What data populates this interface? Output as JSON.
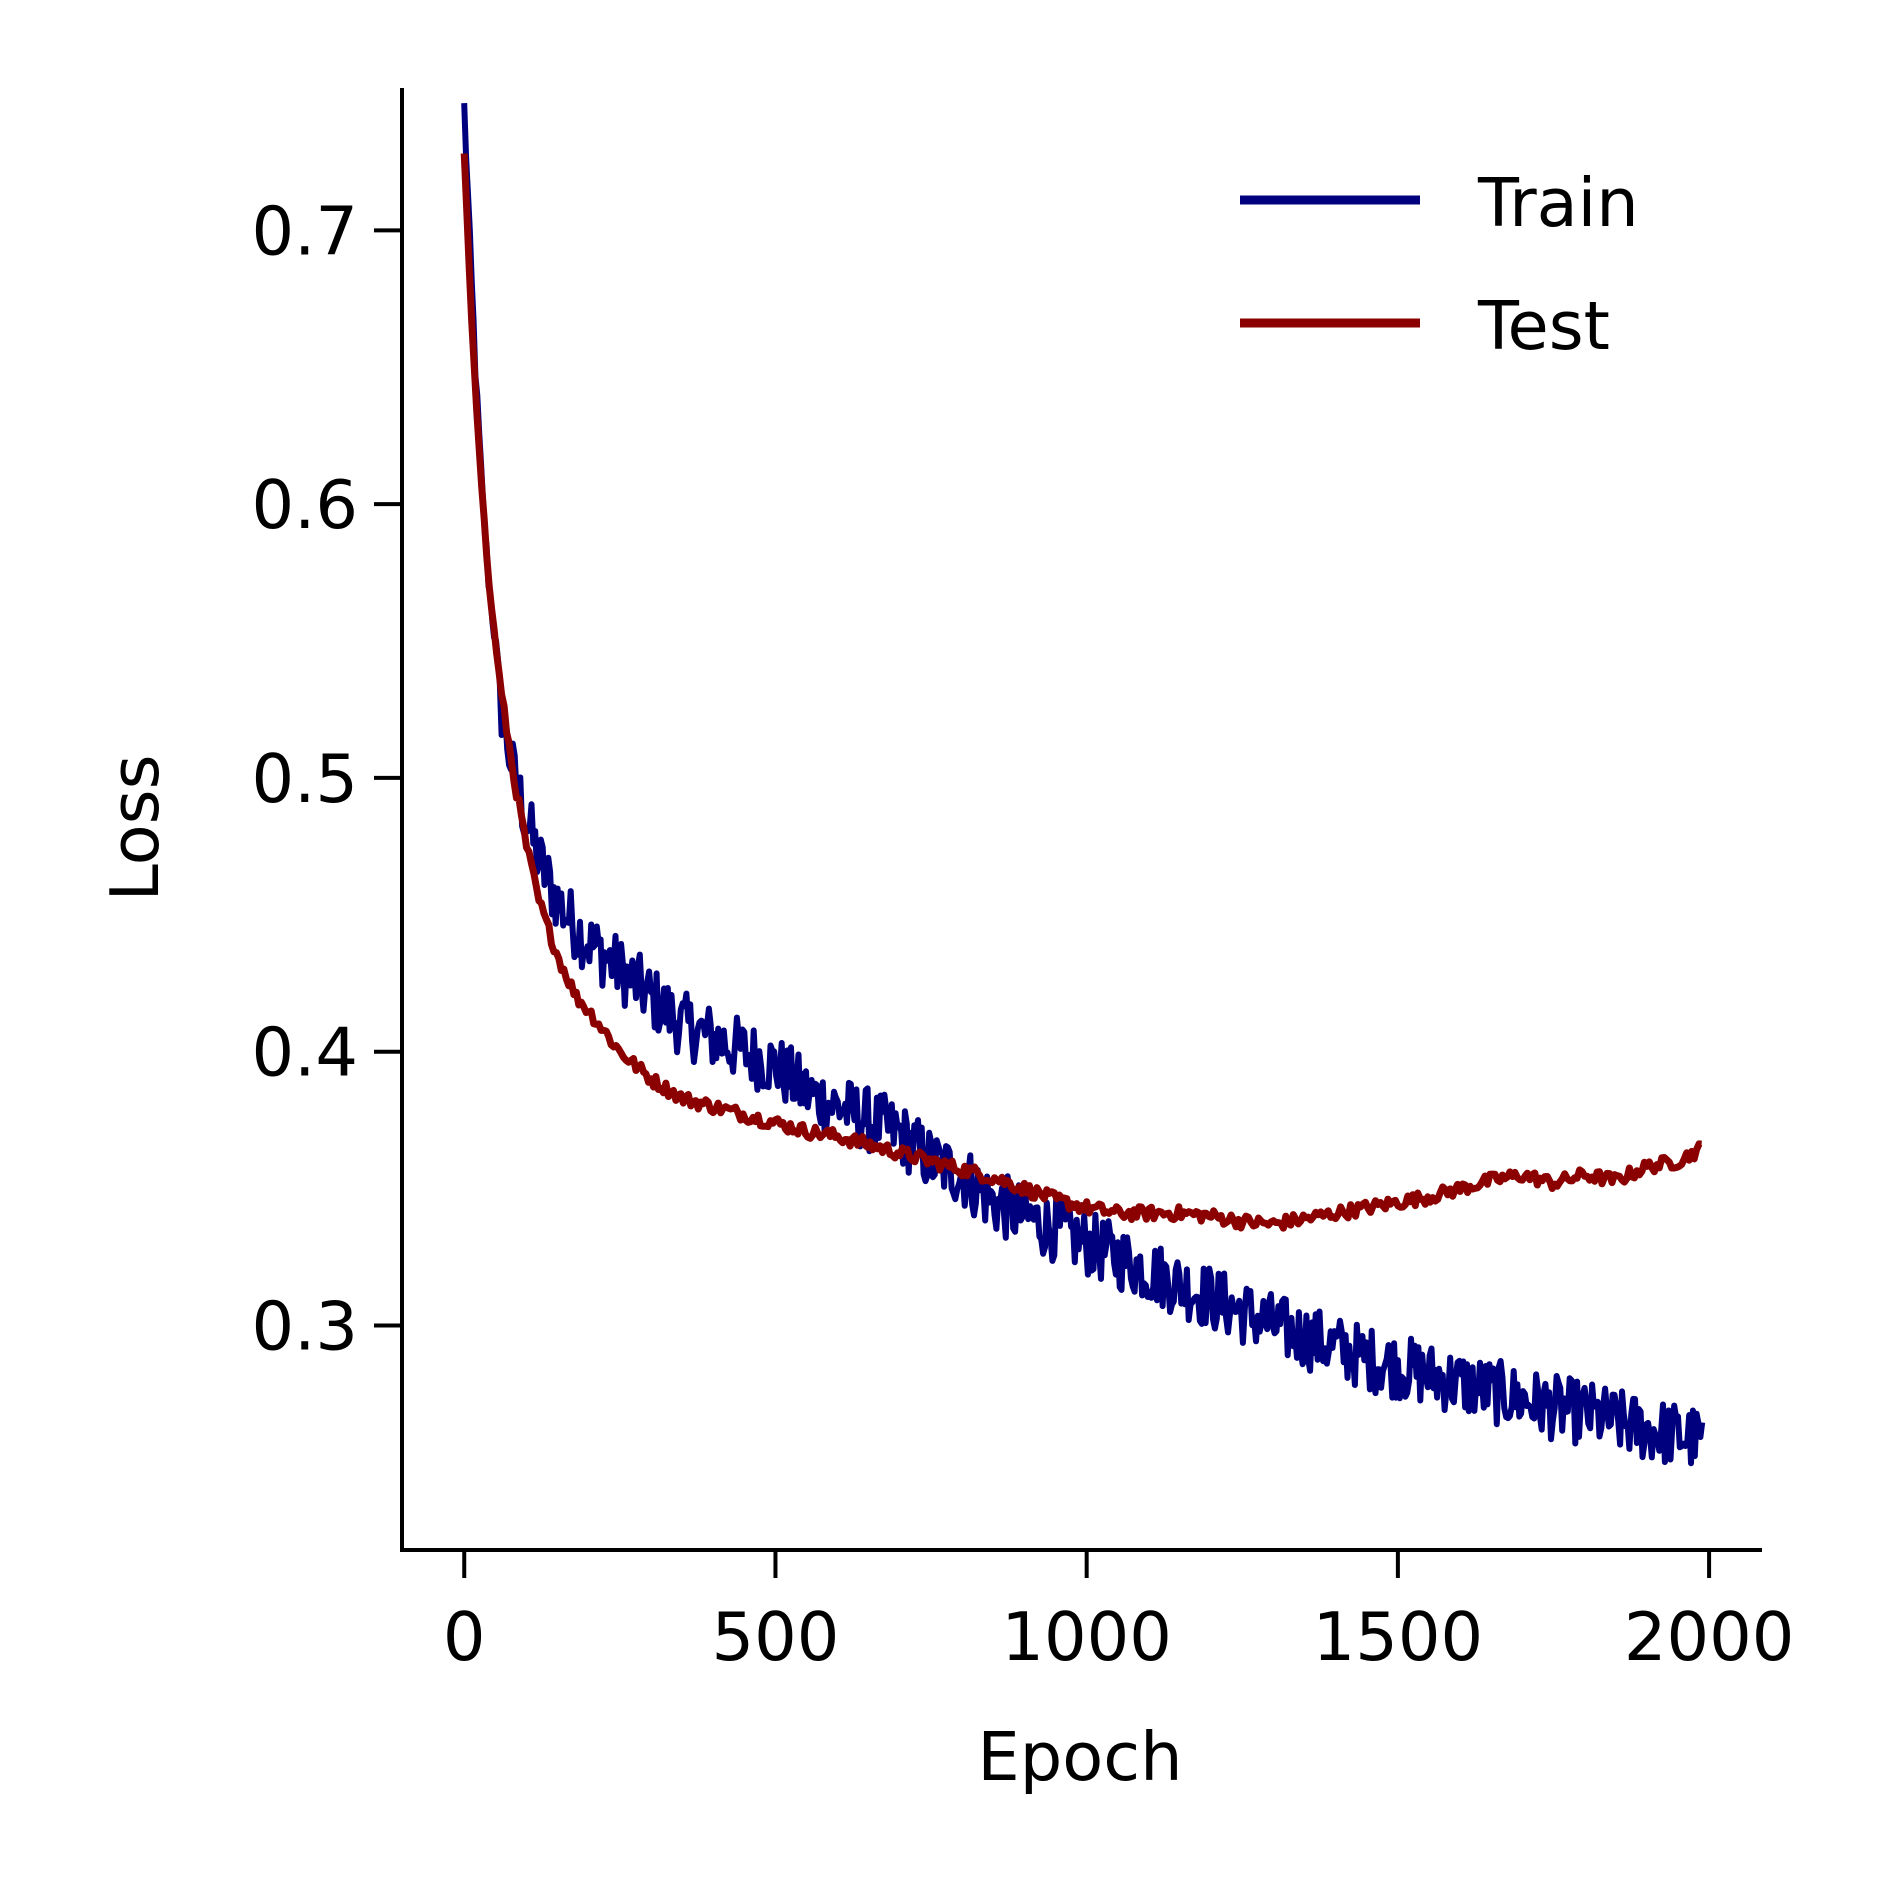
{
  "chart_data": {
    "type": "line",
    "xlabel": "Epoch",
    "ylabel": "Loss",
    "xlim": [
      -100,
      2085
    ],
    "ylim": [
      0.218,
      0.752
    ],
    "xticks": [
      0,
      500,
      1000,
      1500,
      2000
    ],
    "xtick_labels": [
      "0",
      "500",
      "1000",
      "1500",
      "2000"
    ],
    "yticks": [
      0.3,
      0.4,
      0.5,
      0.6,
      0.7
    ],
    "ytick_labels": [
      "0.3",
      "0.4",
      "0.5",
      "0.6",
      "0.7"
    ],
    "grid": false,
    "legend_position": "top-right",
    "series": [
      {
        "name": "Train",
        "color": "#00007f",
        "noise": 0.012,
        "x": [
          0,
          10,
          20,
          30,
          40,
          50,
          60,
          80,
          100,
          120,
          150,
          180,
          200,
          250,
          300,
          350,
          400,
          450,
          500,
          550,
          600,
          650,
          700,
          750,
          800,
          850,
          900,
          950,
          1000,
          1050,
          1100,
          1150,
          1200,
          1250,
          1300,
          1350,
          1400,
          1450,
          1500,
          1550,
          1600,
          1650,
          1700,
          1750,
          1800,
          1850,
          1900,
          1950,
          1990
        ],
        "y": [
          0.745,
          0.69,
          0.64,
          0.6,
          0.57,
          0.55,
          0.525,
          0.5,
          0.485,
          0.47,
          0.455,
          0.445,
          0.44,
          0.43,
          0.42,
          0.41,
          0.405,
          0.4,
          0.395,
          0.385,
          0.38,
          0.375,
          0.37,
          0.36,
          0.355,
          0.345,
          0.34,
          0.335,
          0.33,
          0.325,
          0.32,
          0.315,
          0.31,
          0.305,
          0.3,
          0.296,
          0.292,
          0.288,
          0.285,
          0.282,
          0.279,
          0.276,
          0.273,
          0.27,
          0.268,
          0.265,
          0.262,
          0.26,
          0.258
        ]
      },
      {
        "name": "Test",
        "color": "#8b0000",
        "noise": 0.0025,
        "x": [
          0,
          10,
          20,
          30,
          40,
          50,
          60,
          80,
          100,
          120,
          150,
          180,
          200,
          250,
          300,
          350,
          400,
          450,
          500,
          550,
          600,
          650,
          700,
          750,
          800,
          850,
          900,
          950,
          1000,
          1050,
          1100,
          1150,
          1200,
          1250,
          1300,
          1350,
          1400,
          1450,
          1500,
          1550,
          1600,
          1650,
          1700,
          1750,
          1800,
          1850,
          1900,
          1950,
          1990
        ],
        "y": [
          0.728,
          0.675,
          0.635,
          0.6,
          0.57,
          0.55,
          0.53,
          0.5,
          0.475,
          0.455,
          0.435,
          0.42,
          0.415,
          0.4,
          0.39,
          0.383,
          0.38,
          0.377,
          0.374,
          0.371,
          0.369,
          0.366,
          0.363,
          0.36,
          0.357,
          0.354,
          0.35,
          0.346,
          0.343,
          0.341,
          0.341,
          0.341,
          0.34,
          0.338,
          0.337,
          0.339,
          0.341,
          0.343,
          0.345,
          0.347,
          0.35,
          0.353,
          0.355,
          0.352,
          0.355,
          0.353,
          0.358,
          0.36,
          0.365
        ]
      }
    ]
  }
}
